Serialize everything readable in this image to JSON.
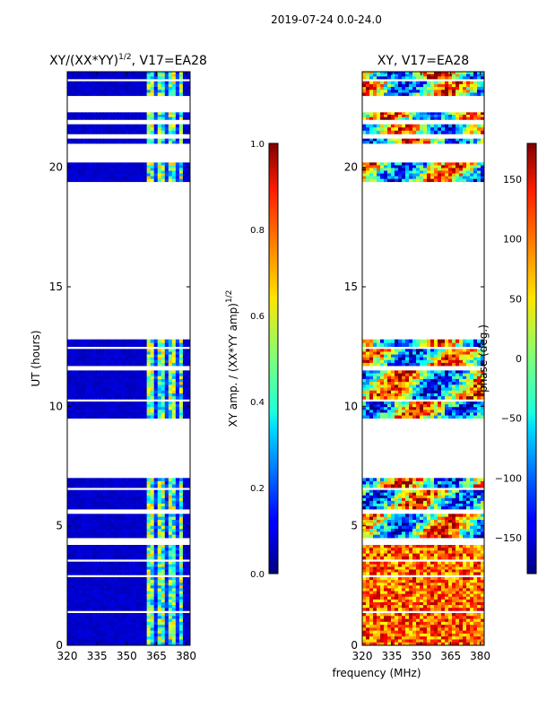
{
  "chart_data": {
    "type": "heatmap",
    "suptitle": "2019-07-24 0.0-24.0",
    "xlabel": "frequency (MHz)",
    "ylabel": "UT (hours)",
    "xlim": [
      320,
      382
    ],
    "ylim": [
      0,
      24
    ],
    "xticks": [
      320,
      335,
      350,
      365,
      380
    ],
    "yticks": [
      0,
      5,
      10,
      15,
      20
    ],
    "data_segments_ut": [
      [
        0.0,
        1.35
      ],
      [
        1.45,
        2.85
      ],
      [
        2.95,
        3.5
      ],
      [
        3.6,
        4.2
      ],
      [
        4.5,
        5.5
      ],
      [
        5.7,
        6.5
      ],
      [
        6.6,
        7.0
      ],
      [
        9.5,
        10.2
      ],
      [
        10.3,
        11.5
      ],
      [
        11.7,
        12.4
      ],
      [
        12.5,
        12.8
      ],
      [
        19.4,
        20.2
      ],
      [
        21.0,
        21.2
      ],
      [
        21.4,
        21.8
      ],
      [
        22.0,
        22.3
      ],
      [
        23.0,
        23.6
      ],
      [
        23.7,
        24.0
      ]
    ],
    "rfi_band_mhz": [
      361,
      379
    ],
    "panels": [
      {
        "title_main": "XY/(XX*YY)",
        "title_sup": "1/2",
        "title_tail": ", V17=EA28",
        "colormap": "jet",
        "clim": [
          0.0,
          1.0
        ],
        "colorbar_ticks": [
          "0.0",
          "0.2",
          "0.4",
          "0.6",
          "0.8",
          "1.0"
        ],
        "colorbar_label_main": "XY amp. / (XX*YY amp)",
        "colorbar_label_sup": "1/2",
        "typical_value": 0.05,
        "band_value_range": [
          0.25,
          0.7
        ]
      },
      {
        "title_main": "XY, V17=EA28",
        "colormap": "jet",
        "clim": [
          -180,
          180
        ],
        "colorbar_ticks": [
          "−150",
          "−100",
          "−50",
          "0",
          "50",
          "100",
          "150"
        ],
        "colorbar_tick_values": [
          -150,
          -100,
          -50,
          0,
          50,
          100,
          150
        ],
        "colorbar_label": "phase (deg.)",
        "typical_value": 0,
        "value_range": [
          -180,
          180
        ]
      }
    ]
  }
}
